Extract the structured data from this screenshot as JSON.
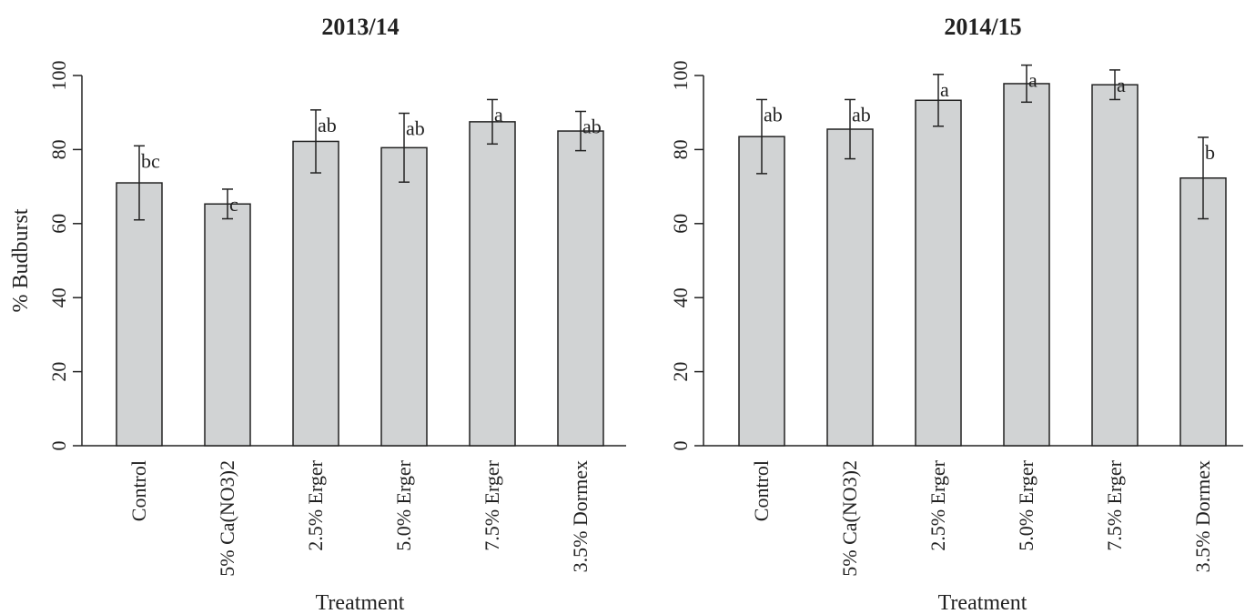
{
  "chart_data": [
    {
      "type": "bar",
      "title": "2013/14",
      "x_label": "Treatment",
      "y_label": "% Budburst",
      "categories": [
        "Control",
        "5% Ca(NO3)2",
        "2.5% Erger",
        "5.0% Erger",
        "7.5% Erger",
        "3.5% Dormex"
      ],
      "values": [
        71,
        65.3,
        82.2,
        80.5,
        87.5,
        85
      ],
      "errors": [
        10,
        4,
        8.5,
        9.3,
        6,
        5.3
      ],
      "annotations": [
        "bc",
        "c",
        "ab",
        "ab",
        "a",
        "ab"
      ],
      "color": "#d1d3d4",
      "ylim": [
        0,
        100
      ],
      "yticks": [
        0,
        20,
        40,
        60,
        80,
        100
      ]
    },
    {
      "type": "bar",
      "title": "2014/15",
      "x_label": "Treatment",
      "categories": [
        "Control",
        "5% Ca(NO3)2",
        "2.5% Erger",
        "5.0% Erger",
        "7.5% Erger",
        "3.5% Dormex"
      ],
      "values": [
        83.5,
        85.5,
        93.3,
        97.8,
        97.5,
        72.3
      ],
      "errors": [
        10,
        8,
        7,
        5,
        4,
        11
      ],
      "annotations": [
        "ab",
        "ab",
        "a",
        "a",
        "a",
        "b"
      ],
      "color": "#d1d3d4",
      "ylim": [
        0,
        100
      ],
      "yticks": [
        0,
        20,
        40,
        60,
        80,
        100
      ]
    }
  ]
}
